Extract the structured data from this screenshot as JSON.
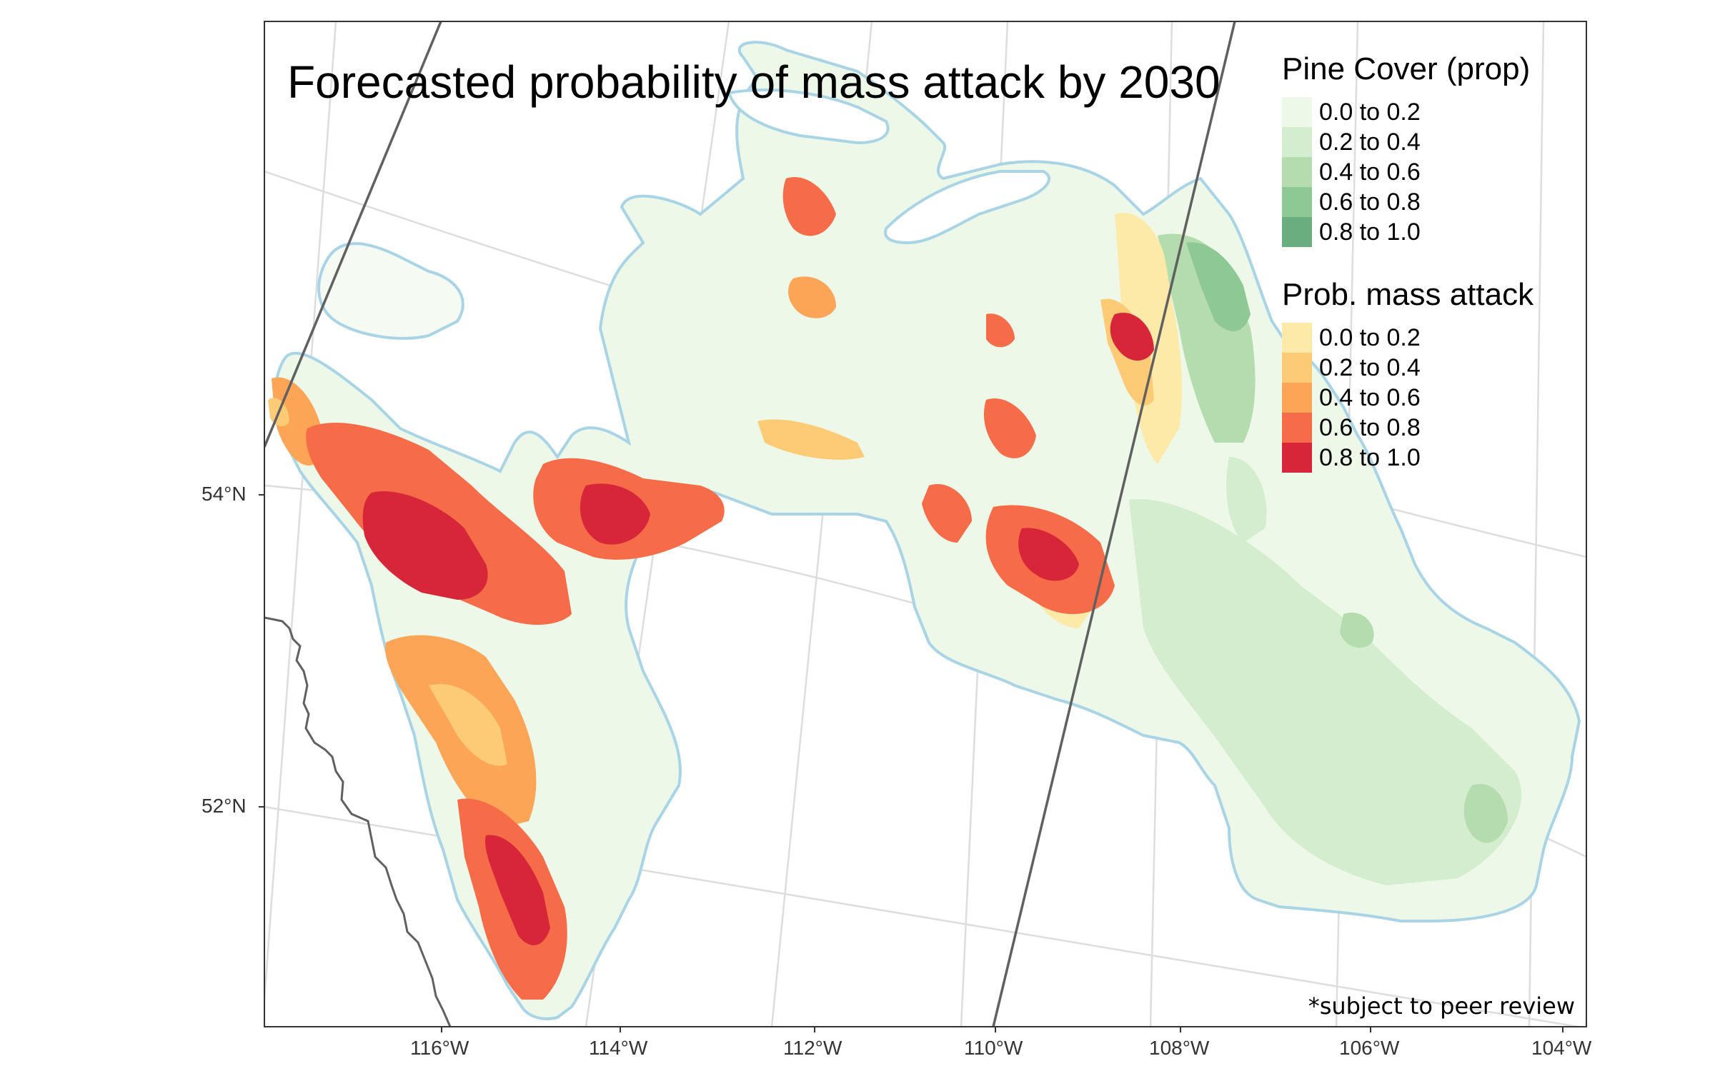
{
  "map": {
    "title": "Forecasted probability of mass attack by 2030",
    "footnote": "*subject to peer review",
    "lat_labels": [
      "54°N",
      "52°N"
    ],
    "lon_labels": [
      "116°W",
      "114°W",
      "112°W",
      "110°W",
      "108°W",
      "106°W",
      "104°W"
    ]
  },
  "legend_pine": {
    "title": "Pine Cover (prop)",
    "items": [
      {
        "label": "0.0 to 0.2",
        "color": "#edf8e9"
      },
      {
        "label": "0.2 to 0.4",
        "color": "#d4edce"
      },
      {
        "label": "0.4 to 0.6",
        "color": "#b4dcae"
      },
      {
        "label": "0.6 to 0.8",
        "color": "#8ec894"
      },
      {
        "label": "0.8 to 1.0",
        "color": "#6aae80"
      }
    ]
  },
  "legend_attack": {
    "title": "Prob. mass attack",
    "items": [
      {
        "label": "0.0 to 0.2",
        "color": "#fdeaa9"
      },
      {
        "label": "0.2 to 0.4",
        "color": "#fdcb75"
      },
      {
        "label": "0.4 to 0.6",
        "color": "#fca556"
      },
      {
        "label": "0.6 to 0.8",
        "color": "#f66b48"
      },
      {
        "label": "0.8 to 1.0",
        "color": "#d7263a"
      }
    ]
  },
  "colors": {
    "study_outline": "#a8d4e6",
    "graticule": "#dddddd",
    "boundary": "#606060",
    "panel_border": "#333333"
  }
}
